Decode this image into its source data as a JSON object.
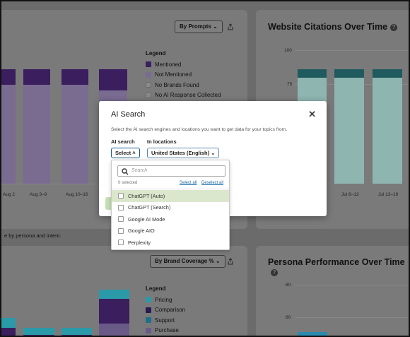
{
  "left_chart": {
    "dropdown_label": "By Prompts",
    "legend_title": "Legend",
    "legend": [
      {
        "label": "Mentioned",
        "color": "#3b1e5e"
      },
      {
        "label": "Not Mentioned",
        "color": "#7a6b91"
      },
      {
        "label": "No Brands Found",
        "color": "#8a8a8a"
      },
      {
        "label": "No AI Response Collected",
        "color": "#8a8a8a"
      }
    ],
    "x_ticks": [
      "Aug 2",
      "Aug 3–9",
      "Aug 10–16"
    ]
  },
  "right_chart": {
    "title": "Website Citations Over Time",
    "y_ticks": [
      "100",
      "75"
    ],
    "x_ticks": [
      "Jul 6–12",
      "Jul 13–19"
    ]
  },
  "footnote": "e by persona and intent.",
  "bottom_left": {
    "dropdown_label": "By Brand Coverage %",
    "legend_title": "Legend",
    "legend": [
      {
        "label": "Pricing",
        "color": "#2a7f8a"
      },
      {
        "label": "Comparison",
        "color": "#2a1a52"
      },
      {
        "label": "Support",
        "color": "#1e6f8a"
      },
      {
        "label": "Purchase",
        "color": "#6a5a88"
      }
    ]
  },
  "bottom_right": {
    "title": "Persona Performance Over Time",
    "y_ticks": [
      "80",
      "60"
    ]
  },
  "modal": {
    "title": "AI Search",
    "close_glyph": "✕",
    "description": "Select the AI search engines and locations you want to get data for your topics from.",
    "ai_search_label": "AI search",
    "in_locations_label": "In locations",
    "select_button": "Select",
    "location_value": "United States (English)"
  },
  "dropdown": {
    "search_placeholder": "Search",
    "selected_count": "0 selected",
    "select_all": "Select all",
    "deselect_all": "Deselect all",
    "options": [
      {
        "label": "ChatGPT (Auto)",
        "highlighted": true
      },
      {
        "label": "ChatGPT (Search)",
        "highlighted": false
      },
      {
        "label": "Google AI Mode",
        "highlighted": false
      },
      {
        "label": "Google AIO",
        "highlighted": false
      },
      {
        "label": "Perplexity",
        "highlighted": false
      }
    ]
  }
}
